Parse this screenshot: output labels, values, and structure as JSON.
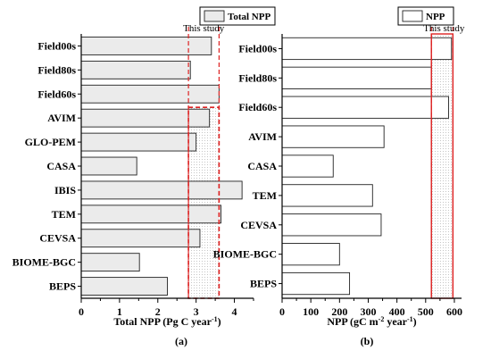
{
  "chart_data": [
    {
      "type": "bar",
      "orientation": "horizontal",
      "panel_label": "(a)",
      "categories": [
        "Field00s",
        "Field80s",
        "Field60s",
        "AVIM",
        "GLO-PEM",
        "CASA",
        "IBIS",
        "TEM",
        "CEVSA",
        "BIOME-BGC",
        "BEPS"
      ],
      "series": [
        {
          "name": "Total NPP",
          "values": [
            3.4,
            2.85,
            3.6,
            3.35,
            3.0,
            1.45,
            4.2,
            3.65,
            3.1,
            1.52,
            2.25
          ]
        }
      ],
      "xlabel": "Total NPP (Pg C year",
      "xlabel_sup": "-1",
      "xlabel_suffix": ")",
      "xlim": [
        0,
        4.5
      ],
      "xticks": [
        0,
        1,
        2,
        3,
        4
      ],
      "annotation": "This study",
      "this_study_range": [
        2.8,
        3.6
      ],
      "bar_fill": "#ebebeb",
      "highlight_color": "#dd2222",
      "legend_position": "top-right"
    },
    {
      "type": "bar",
      "orientation": "horizontal",
      "panel_label": "(b)",
      "categories": [
        "Field00s",
        "Field80s",
        "Field60s",
        "AVIM",
        "CASA",
        "TEM",
        "CEVSA",
        "BIOME-BGC",
        "BEPS"
      ],
      "series": [
        {
          "name": "NPP",
          "values": [
            590,
            520,
            580,
            355,
            178,
            315,
            345,
            200,
            235
          ]
        }
      ],
      "xlabel": "NPP (gC m",
      "xlabel_sup1": "-2",
      "xlabel_mid": " year",
      "xlabel_sup2": "-1",
      "xlabel_suffix": ")",
      "xlim": [
        0,
        625
      ],
      "xticks": [
        0,
        100,
        200,
        300,
        400,
        500,
        600
      ],
      "annotation": "This study",
      "this_study_range": [
        520,
        595
      ],
      "bar_fill": "#ffffff",
      "highlight_color": "#dd2222",
      "legend_position": "top-right"
    }
  ]
}
